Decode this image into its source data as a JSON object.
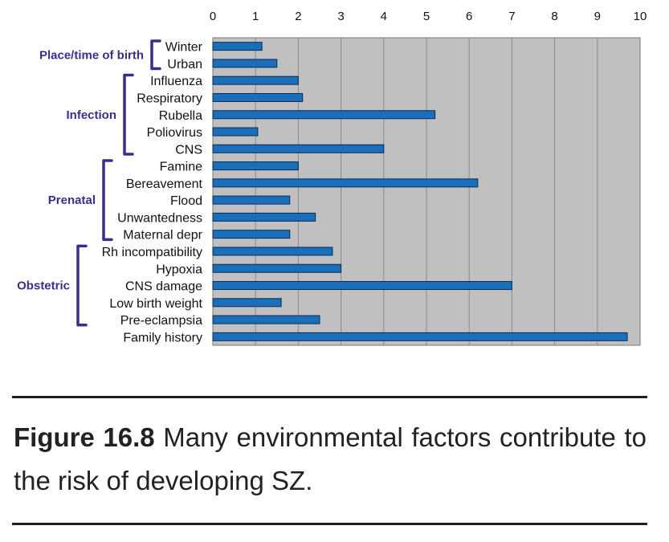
{
  "chart_data": {
    "type": "bar",
    "orientation": "horizontal",
    "xlim": [
      0,
      10
    ],
    "x_ticks": [
      "0",
      "1",
      "2",
      "3",
      "4",
      "5",
      "6",
      "7",
      "8",
      "9",
      "10"
    ],
    "x_tick_position": "top",
    "grid": true,
    "categories": [
      "Winter",
      "Urban",
      "Influenza",
      "Respiratory",
      "Rubella",
      "Poliovirus",
      "CNS",
      "Famine",
      "Bereavement",
      "Flood",
      "Unwantedness",
      "Maternal depr",
      "Rh incompatibility",
      "Hypoxia",
      "CNS damage",
      "Low birth weight",
      "Pre-eclampsia",
      "Family history"
    ],
    "values": [
      1.15,
      1.5,
      2.0,
      2.1,
      5.2,
      1.05,
      4.0,
      2.0,
      6.2,
      1.8,
      2.4,
      1.8,
      2.8,
      3.0,
      7.0,
      1.6,
      2.5,
      9.7
    ],
    "groups": [
      {
        "label": "Place/time of birth",
        "first": 0,
        "last": 1
      },
      {
        "label": "Infection",
        "first": 2,
        "last": 6
      },
      {
        "label": "Prenatal",
        "first": 7,
        "last": 11
      },
      {
        "label": "Obstetric",
        "first": 12,
        "last": 16
      }
    ],
    "colors": {
      "bar": "#1a6fba",
      "bar_edge": "#0b2a55",
      "plot_bg": "#c0c0c0",
      "grid": "#8a8a8a",
      "group_label": "#3a2d8c"
    }
  },
  "caption": {
    "label": "Figure 16.8",
    "text": "Many environmental factors contribute to the risk of developing SZ."
  }
}
